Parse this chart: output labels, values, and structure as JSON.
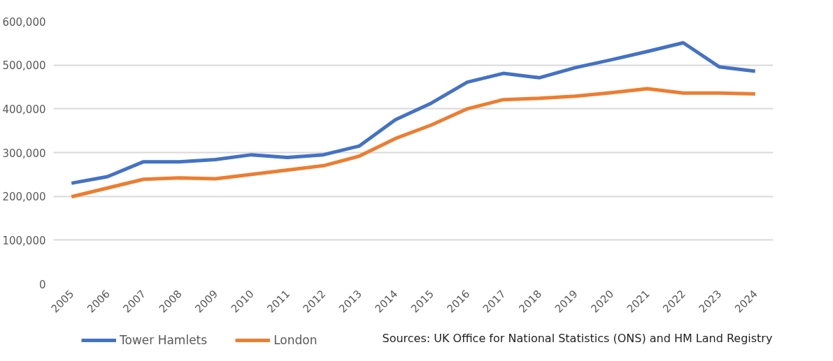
{
  "chart_data": {
    "type": "line",
    "categories": [
      "2005",
      "2006",
      "2007",
      "2008",
      "2009",
      "2010",
      "2011",
      "2012",
      "2013",
      "2014",
      "2015",
      "2016",
      "2017",
      "2018",
      "2019",
      "2020",
      "2021",
      "2022",
      "2023",
      "2024"
    ],
    "series": [
      {
        "name": "Tower Hamlets",
        "color": "#4472c4",
        "values": [
          230000,
          245000,
          279000,
          279000,
          284000,
          295000,
          289000,
          295000,
          315000,
          375000,
          413000,
          461000,
          481000,
          471000,
          494000,
          512000,
          531000,
          551000,
          496000,
          486000
        ]
      },
      {
        "name": "London",
        "color": "#ed7d31",
        "values": [
          199000,
          219000,
          239000,
          242000,
          240000,
          250000,
          260000,
          270000,
          292000,
          332000,
          363000,
          400000,
          421000,
          424000,
          429000,
          437000,
          446000,
          436000,
          436000,
          434000
        ]
      }
    ],
    "ylim": [
      0,
      600000
    ],
    "yticks": [
      {
        "value": 0,
        "label": "0"
      },
      {
        "value": 100000,
        "label": "100,000"
      },
      {
        "value": 200000,
        "label": "200,000"
      },
      {
        "value": 300000,
        "label": "300,000"
      },
      {
        "value": 400000,
        "label": "400,000"
      },
      {
        "value": 500000,
        "label": "500,000"
      },
      {
        "value": 600000,
        "label": "600,000"
      }
    ],
    "grid": "y",
    "legend": "bottom",
    "marker": "none",
    "line_style": "solid",
    "annotations": [
      "Sources: UK Office for National Statistics (ONS) and HM Land Registry"
    ]
  }
}
